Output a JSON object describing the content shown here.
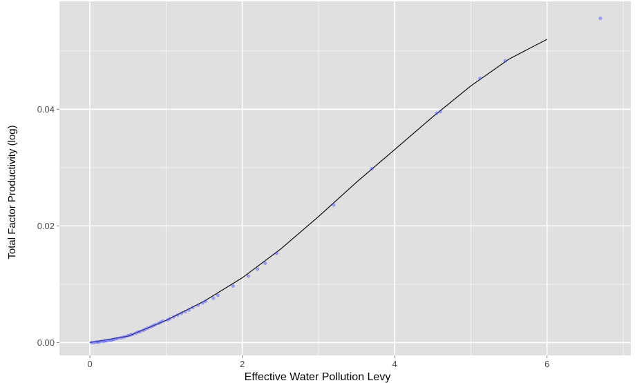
{
  "chart_data": {
    "type": "scatter",
    "title": "",
    "xlabel": "Effective Water Pollution Levy",
    "ylabel": "Total Factor Productivity (log)",
    "xlim": [
      -0.4,
      7.1
    ],
    "ylim": [
      -0.0022,
      0.0585
    ],
    "grid": true,
    "x_ticks": [
      0,
      2,
      4,
      6
    ],
    "x_tick_labels": [
      "0",
      "2",
      "4",
      "6"
    ],
    "y_ticks": [
      0.0,
      0.02,
      0.04
    ],
    "y_tick_labels": [
      "0.00",
      "0.02",
      "0.04"
    ],
    "colors": {
      "panel": "#e0e0e0",
      "grid_major": "#ffffff",
      "points": "#4b4bff",
      "line": "#1a1a1a"
    },
    "series": [
      {
        "type": "scatter",
        "x": [
          0.02,
          0.05,
          0.08,
          0.1,
          0.12,
          0.15,
          0.18,
          0.2,
          0.22,
          0.25,
          0.28,
          0.3,
          0.33,
          0.36,
          0.4,
          0.43,
          0.46,
          0.5,
          0.53,
          0.56,
          0.6,
          0.63,
          0.66,
          0.7,
          0.73,
          0.76,
          0.8,
          0.83,
          0.86,
          0.9,
          0.93,
          0.96,
          1.02,
          1.05,
          1.1,
          1.15,
          1.2,
          1.25,
          1.3,
          1.35,
          1.42,
          1.48,
          1.52,
          1.62,
          1.68,
          1.88,
          2.08,
          2.2,
          2.3,
          2.45,
          3.2,
          3.7,
          4.55,
          4.6,
          5.12,
          5.45,
          6.7
        ],
        "y": [
          0.0,
          0.0,
          0.0001,
          0.0001,
          0.0001,
          0.0002,
          0.0002,
          0.0003,
          0.0003,
          0.0004,
          0.0004,
          0.0005,
          0.0006,
          0.0007,
          0.0008,
          0.0009,
          0.001,
          0.0012,
          0.0013,
          0.0014,
          0.0016,
          0.0018,
          0.0019,
          0.0021,
          0.0023,
          0.0025,
          0.0027,
          0.0029,
          0.0031,
          0.0033,
          0.0035,
          0.0037,
          0.0039,
          0.0041,
          0.0044,
          0.0047,
          0.005,
          0.0053,
          0.0056,
          0.006,
          0.0064,
          0.0068,
          0.0071,
          0.0076,
          0.0081,
          0.0097,
          0.0114,
          0.0126,
          0.0136,
          0.0153,
          0.0236,
          0.0298,
          0.0393,
          0.0396,
          0.0453,
          0.0483,
          0.0556
        ]
      },
      {
        "type": "line",
        "x": [
          0.0,
          0.5,
          1.0,
          1.5,
          2.0,
          2.5,
          3.0,
          3.5,
          4.0,
          4.5,
          5.0,
          5.5,
          6.0
        ],
        "y": [
          0.0,
          0.0011,
          0.0038,
          0.0071,
          0.0111,
          0.016,
          0.0216,
          0.0275,
          0.0331,
          0.0387,
          0.044,
          0.0486,
          0.052
        ]
      }
    ]
  }
}
